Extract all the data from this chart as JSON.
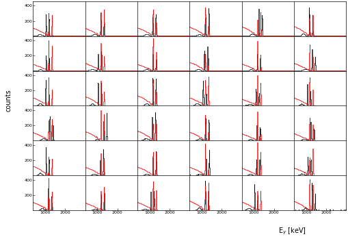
{
  "nrows": 6,
  "ncols": 6,
  "xmin": 400,
  "xmax": 3000,
  "ymin": 0,
  "ymax": 460,
  "yticks": [
    200,
    400
  ],
  "xticks": [
    1000,
    2000
  ],
  "ylabel": "counts",
  "co60_peak1": 1173.2,
  "co60_peak2": 1332.5,
  "background_color": "#ffffff",
  "black_color": "#000000",
  "red_color": "#ff0000",
  "linewidth": 0.5,
  "fig_facecolor": "#ffffff"
}
